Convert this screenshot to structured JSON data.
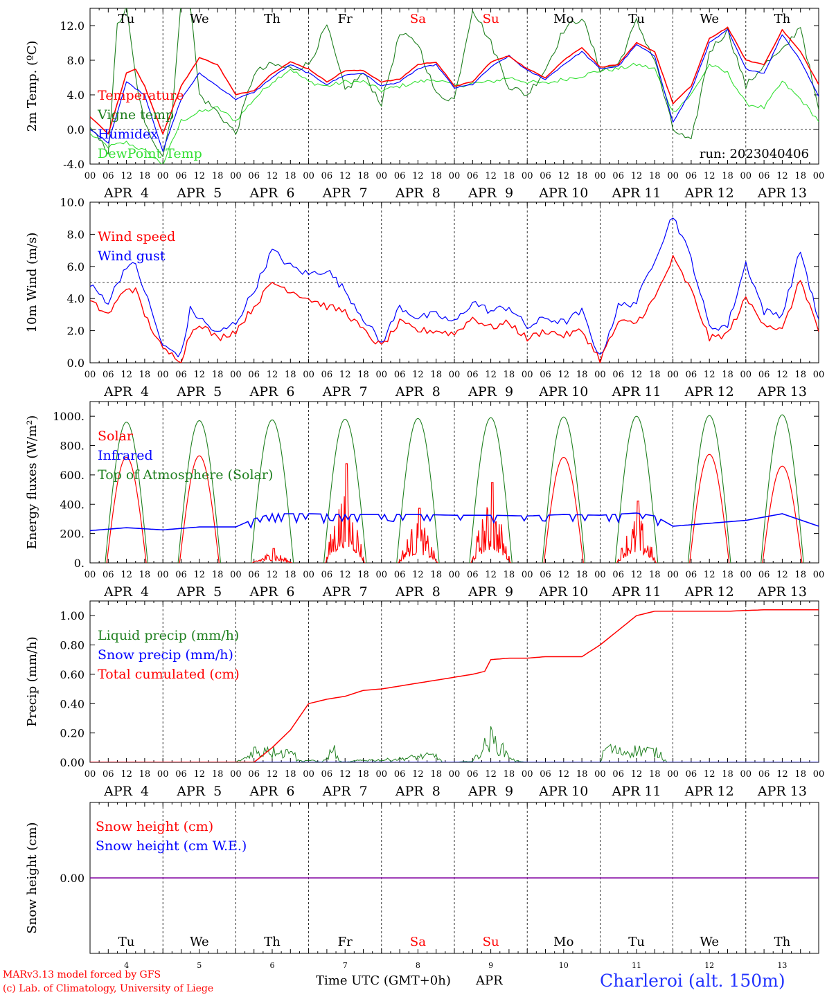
{
  "colors": {
    "red": "#ff0000",
    "green": "#208020",
    "lightgreen": "#33e033",
    "blue": "#0000ff",
    "purple": "#8000a0",
    "black": "#000000"
  },
  "days": {
    "top_labels": [
      "Tu",
      "We",
      "Th",
      "Fr",
      "Sa",
      "Su",
      "Mo",
      "Tu",
      "We",
      "Th"
    ],
    "red_label_indices": [
      4,
      5
    ],
    "date_labels": [
      "APR  4",
      "APR  5",
      "APR  6",
      "APR  7",
      "APR  8",
      "APR  9",
      "APR 10",
      "APR 11",
      "APR 12",
      "APR 13"
    ],
    "hour_ticks": [
      "00",
      "06",
      "12",
      "18"
    ],
    "last_tick": "00",
    "bottom_day_numbers": [
      "4",
      "5",
      "6",
      "7",
      "8",
      "9",
      "10",
      "11",
      "12",
      "13"
    ]
  },
  "footer": {
    "credit_line1": "MARv3.13 model forced by GFS",
    "credit_line2": "(c) Lab. of Climatology, University of Liege",
    "xlabel": "Time UTC (GMT+0h)",
    "month": "APR",
    "station": "Charleroi (alt. 150m)"
  },
  "chart_data": [
    {
      "type": "line",
      "ylabel": "2m Temp. (ºC)",
      "ylim": [
        -4,
        14
      ],
      "yticks": [
        "-4.0",
        "0.0",
        "4.0",
        "8.0",
        "12.0"
      ],
      "ytick_values": [
        -4,
        0,
        4,
        8,
        12
      ],
      "reference_line": 0,
      "annotation": "run: 2023040406",
      "x_unit": "hours from 2023-04-04 00 UTC",
      "series": [
        {
          "name": "Temperature",
          "color": "red",
          "x": [
            0,
            6,
            12,
            15,
            18,
            24,
            30,
            36,
            42,
            48,
            54,
            60,
            66,
            72,
            78,
            84,
            90,
            96,
            102,
            108,
            114,
            120,
            126,
            132,
            138,
            144,
            150,
            156,
            162,
            168,
            174,
            180,
            186,
            192,
            198,
            204,
            210,
            216,
            222,
            228,
            234,
            240
          ],
          "values": [
            1.5,
            -0.5,
            6.5,
            7.0,
            5.0,
            -0.5,
            5.0,
            8.3,
            7.5,
            4.0,
            4.5,
            6.5,
            7.8,
            7.0,
            5.5,
            6.8,
            6.8,
            5.5,
            5.8,
            7.5,
            7.8,
            5.0,
            5.5,
            7.8,
            8.5,
            7.0,
            6.0,
            8.0,
            9.5,
            7.2,
            7.5,
            10.0,
            9.0,
            3.0,
            5.0,
            10.5,
            11.8,
            8.0,
            7.5,
            11.5,
            9.0,
            5.2
          ]
        },
        {
          "name": "Vigne temp",
          "color": "green",
          "x": [
            0,
            6,
            9,
            12,
            15,
            18,
            24,
            27,
            30,
            33,
            36,
            42,
            48,
            54,
            60,
            66,
            72,
            78,
            84,
            90,
            96,
            102,
            108,
            114,
            120,
            126,
            132,
            138,
            144,
            150,
            156,
            162,
            168,
            174,
            180,
            186,
            192,
            198,
            204,
            210,
            216,
            222,
            228,
            234,
            240
          ],
          "values": [
            0.0,
            -2.5,
            12.0,
            14.0,
            6.0,
            0.5,
            -3.0,
            2.0,
            14.5,
            14.5,
            4.0,
            2.0,
            -0.5,
            6.5,
            7.5,
            7.0,
            7.5,
            12.0,
            4.5,
            6.5,
            3.0,
            11.0,
            10.0,
            4.0,
            3.5,
            14.0,
            10.0,
            5.0,
            4.0,
            7.0,
            11.5,
            13.0,
            7.0,
            7.5,
            12.5,
            8.0,
            0.0,
            -1.5,
            9.0,
            11.5,
            5.0,
            7.5,
            9.0,
            12.0,
            2.0
          ]
        },
        {
          "name": "Humidex",
          "color": "blue",
          "x": [
            0,
            6,
            12,
            18,
            24,
            30,
            36,
            42,
            48,
            54,
            60,
            66,
            72,
            78,
            84,
            90,
            96,
            102,
            108,
            114,
            120,
            126,
            132,
            138,
            144,
            150,
            156,
            162,
            168,
            174,
            180,
            186,
            192,
            198,
            204,
            210,
            216,
            222,
            228,
            234,
            240
          ],
          "values": [
            0.0,
            -1.5,
            5.5,
            4.0,
            -2.5,
            3.5,
            6.5,
            5.0,
            3.5,
            4.3,
            6.0,
            7.5,
            6.5,
            5.2,
            6.3,
            6.5,
            5.0,
            5.5,
            7.0,
            7.5,
            4.8,
            5.2,
            7.2,
            8.5,
            6.8,
            5.8,
            7.5,
            9.0,
            7.0,
            7.3,
            9.8,
            8.5,
            0.8,
            4.5,
            10.0,
            11.5,
            7.0,
            6.5,
            11.0,
            8.0,
            3.8
          ]
        },
        {
          "name": "DewPoint Temp",
          "color": "lightgreen",
          "x": [
            0,
            6,
            12,
            18,
            24,
            30,
            36,
            42,
            48,
            54,
            60,
            66,
            72,
            78,
            84,
            90,
            96,
            102,
            108,
            114,
            120,
            126,
            132,
            138,
            144,
            150,
            156,
            162,
            168,
            174,
            180,
            186,
            192,
            198,
            204,
            210,
            216,
            222,
            228,
            234,
            240
          ],
          "values": [
            -0.5,
            -2.0,
            -1.5,
            -2.5,
            -4.0,
            1.0,
            2.0,
            2.5,
            1.0,
            3.5,
            5.5,
            7.0,
            5.5,
            5.0,
            5.5,
            5.5,
            4.5,
            5.0,
            5.5,
            5.8,
            5.0,
            5.3,
            5.5,
            6.0,
            5.5,
            5.3,
            5.8,
            6.2,
            6.8,
            7.0,
            7.5,
            7.0,
            2.0,
            4.0,
            7.5,
            6.5,
            3.0,
            2.5,
            5.5,
            3.5,
            1.0
          ]
        }
      ]
    },
    {
      "type": "line",
      "ylabel": "10m Wind (m/s)",
      "ylim": [
        0,
        10
      ],
      "yticks": [
        "0.0",
        "2.0",
        "4.0",
        "6.0",
        "8.0",
        "10.0"
      ],
      "ytick_values": [
        0,
        2,
        4,
        6,
        8,
        10
      ],
      "reference_line": 5,
      "x_unit": "hours from 2023-04-04 00 UTC",
      "series": [
        {
          "name": "Wind speed",
          "color": "red",
          "x": [
            0,
            6,
            12,
            15,
            18,
            24,
            30,
            33,
            36,
            42,
            48,
            54,
            60,
            66,
            72,
            78,
            84,
            90,
            96,
            102,
            108,
            114,
            120,
            126,
            132,
            138,
            144,
            150,
            156,
            162,
            168,
            174,
            180,
            186,
            192,
            198,
            204,
            210,
            216,
            222,
            228,
            234,
            240
          ],
          "values": [
            3.8,
            3.0,
            4.7,
            4.5,
            3.0,
            0.8,
            0.2,
            1.8,
            2.5,
            1.5,
            2.0,
            3.5,
            5.0,
            4.5,
            4.0,
            3.5,
            3.2,
            2.0,
            1.0,
            2.5,
            2.0,
            2.0,
            1.8,
            2.8,
            2.2,
            2.5,
            1.5,
            2.0,
            1.7,
            2.0,
            0.2,
            2.5,
            2.5,
            4.0,
            6.5,
            4.5,
            1.5,
            1.8,
            4.0,
            2.5,
            2.0,
            5.2,
            2.0
          ]
        },
        {
          "name": "Wind gust",
          "color": "blue",
          "x": [
            0,
            6,
            12,
            15,
            18,
            24,
            30,
            33,
            36,
            42,
            48,
            54,
            60,
            66,
            72,
            78,
            84,
            90,
            96,
            102,
            108,
            114,
            120,
            126,
            132,
            138,
            144,
            150,
            156,
            162,
            168,
            174,
            180,
            186,
            192,
            198,
            204,
            210,
            216,
            222,
            228,
            234,
            240
          ],
          "values": [
            4.8,
            3.8,
            6.1,
            6.0,
            4.5,
            1.0,
            0.5,
            3.3,
            2.8,
            1.8,
            2.5,
            4.5,
            7.0,
            6.0,
            5.5,
            5.8,
            4.5,
            2.8,
            1.2,
            3.5,
            2.8,
            3.0,
            2.5,
            3.8,
            3.2,
            3.5,
            2.2,
            2.8,
            2.5,
            3.2,
            0.3,
            3.5,
            3.8,
            6.5,
            9.2,
            6.5,
            2.2,
            2.3,
            6.2,
            3.2,
            3.0,
            7.0,
            2.6
          ]
        }
      ]
    },
    {
      "type": "line",
      "ylabel": "Energy fluxes (W/m²)",
      "ylim": [
        0,
        1100
      ],
      "yticks": [
        "0.",
        "200.",
        "400.",
        "600.",
        "800.",
        "1000."
      ],
      "ytick_values": [
        0,
        200,
        400,
        600,
        800,
        1000
      ],
      "x_unit": "hours from 2023-04-04 00 UTC",
      "toa_peaks": [
        960,
        970,
        975,
        980,
        985,
        990,
        995,
        1000,
        1005,
        1010
      ],
      "solar_peaks": [
        720,
        730,
        100,
        690,
        380,
        560,
        720,
        430,
        740,
        660
      ],
      "series": [
        {
          "name": "Solar",
          "color": "red"
        },
        {
          "name": "Infrared",
          "color": "blue",
          "x": [
            0,
            12,
            24,
            36,
            48,
            54,
            60,
            72,
            84,
            96,
            108,
            120,
            132,
            144,
            156,
            168,
            180,
            186,
            192,
            204,
            216,
            228,
            240
          ],
          "values": [
            220,
            240,
            225,
            245,
            245,
            300,
            335,
            335,
            330,
            330,
            330,
            325,
            325,
            320,
            330,
            325,
            340,
            320,
            250,
            270,
            290,
            335,
            250
          ]
        },
        {
          "name": "Top of Atmosphere (Solar)",
          "color": "green"
        }
      ]
    },
    {
      "type": "line",
      "ylabel": "Precip (mm/h)",
      "ylim": [
        0,
        1.1
      ],
      "yticks": [
        "0.00",
        "0.20",
        "0.40",
        "0.60",
        "0.80",
        "1.00"
      ],
      "ytick_values": [
        0,
        0.2,
        0.4,
        0.6,
        0.8,
        1.0
      ],
      "x_unit": "hours from 2023-04-04 00 UTC",
      "series": [
        {
          "name": "Liquid precip (mm/h)",
          "color": "green",
          "x": [
            0,
            48,
            52,
            54,
            56,
            58,
            60,
            62,
            64,
            66,
            68,
            70,
            72,
            74,
            76,
            78,
            80,
            82,
            84,
            90,
            96,
            102,
            108,
            114,
            116,
            120,
            126,
            132,
            140,
            142,
            144,
            150,
            156,
            168,
            170,
            174,
            178,
            182,
            186,
            188,
            190,
            240
          ],
          "values": [
            0,
            0,
            0.05,
            0.12,
            0.06,
            0.15,
            0.08,
            0.14,
            0.05,
            0.18,
            0.02,
            0.01,
            0.02,
            0.01,
            0.0,
            0.03,
            0.13,
            0.01,
            0.0,
            0.02,
            0.02,
            0.03,
            0.05,
            0.06,
            0.0,
            0.0,
            0.01,
            0.21,
            0.01,
            0.01,
            0.0,
            0.0,
            0.0,
            0.0,
            0.14,
            0.09,
            0.1,
            0.11,
            0.09,
            0.07,
            0.0,
            0.0
          ]
        },
        {
          "name": "Snow precip (mm/h)",
          "color": "blue",
          "x": [
            0,
            240
          ],
          "values": [
            0,
            0
          ]
        },
        {
          "name": "Total cumulated (cm)",
          "color": "red",
          "x": [
            0,
            54,
            60,
            66,
            72,
            78,
            84,
            90,
            96,
            102,
            108,
            114,
            120,
            126,
            130,
            132,
            138,
            144,
            150,
            156,
            162,
            168,
            174,
            180,
            186,
            192,
            198,
            210,
            222,
            240
          ],
          "values": [
            0,
            0,
            0.1,
            0.22,
            0.4,
            0.43,
            0.45,
            0.49,
            0.5,
            0.52,
            0.54,
            0.56,
            0.58,
            0.6,
            0.62,
            0.7,
            0.71,
            0.71,
            0.72,
            0.72,
            0.72,
            0.8,
            0.9,
            1.0,
            1.03,
            1.03,
            1.03,
            1.03,
            1.04,
            1.04
          ]
        }
      ]
    },
    {
      "type": "line",
      "ylabel": "Snow height (cm)",
      "yticks": [
        "0.00"
      ],
      "ytick_values": [
        0
      ],
      "x_unit": "hours from 2023-04-04 00 UTC",
      "series": [
        {
          "name": "Snow height (cm)",
          "color": "red",
          "x": [
            0,
            240
          ],
          "values": [
            0,
            0
          ]
        },
        {
          "name": "Snow height (cm W.E.)",
          "color": "blue",
          "x": [
            0,
            240
          ],
          "values": [
            0,
            0
          ]
        }
      ]
    }
  ]
}
